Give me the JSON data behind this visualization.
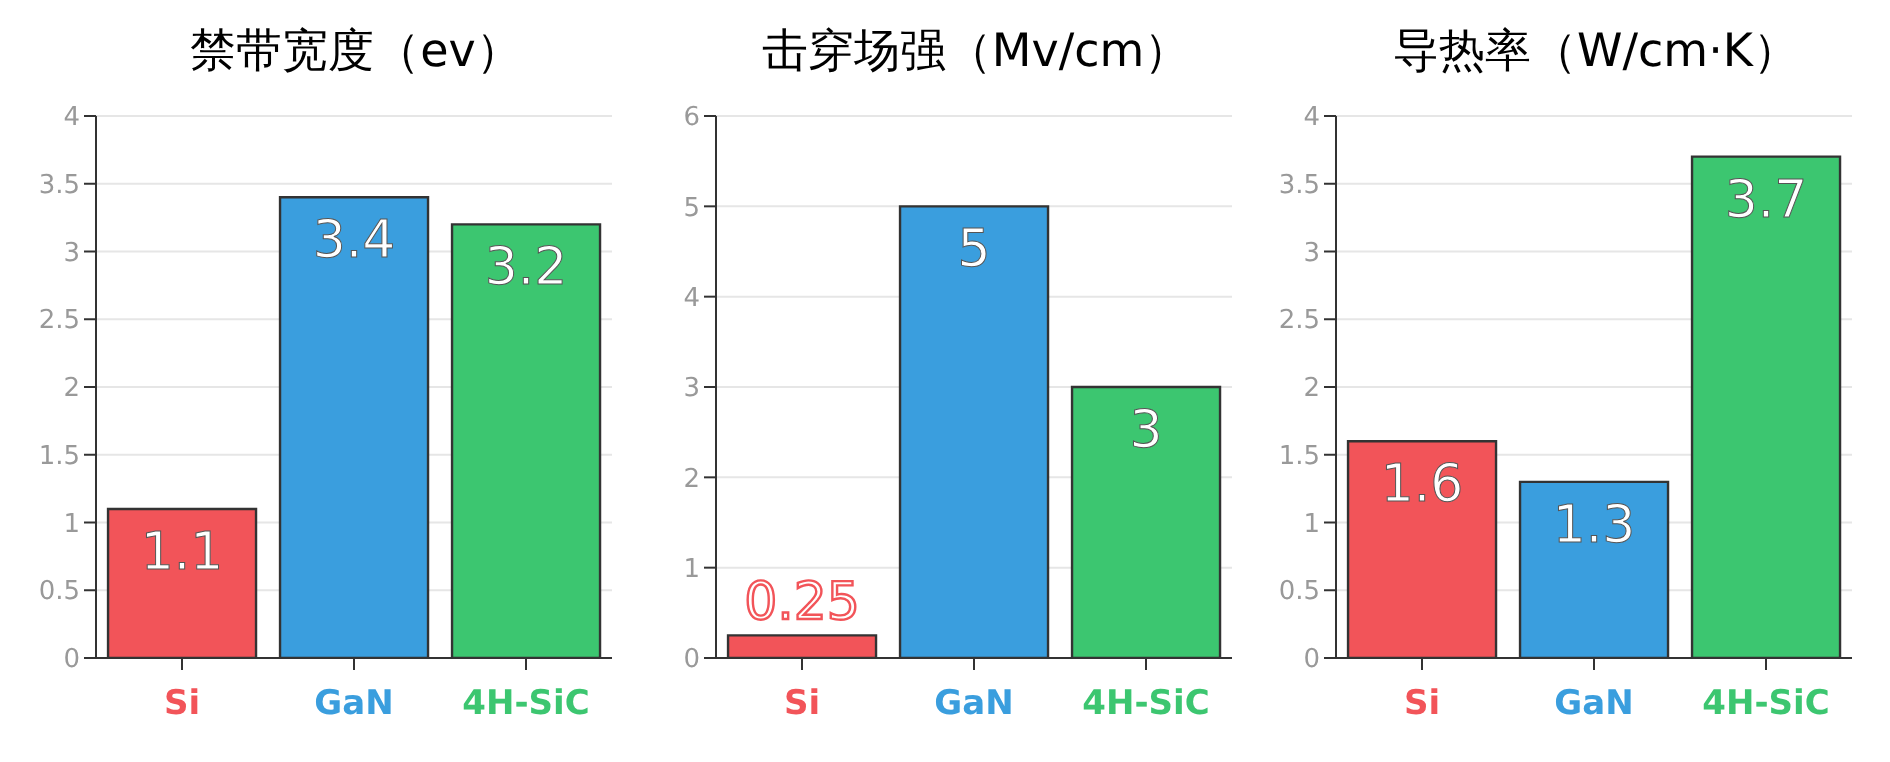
{
  "chart_data": [
    {
      "type": "bar",
      "title": "禁带宽度（ev）",
      "categories": [
        "Si",
        "GaN",
        "4H-SiC"
      ],
      "values": [
        1.1,
        3.4,
        3.2
      ],
      "colors": [
        "#f25459",
        "#3a9ede",
        "#3cc670"
      ],
      "ylim": [
        0,
        4
      ],
      "yticks": [
        0,
        0.5,
        1,
        1.5,
        2,
        2.5,
        3,
        3.5,
        4
      ],
      "grid": "y",
      "data_labels": true
    },
    {
      "type": "bar",
      "title": "击穿场强（Mv/cm）",
      "categories": [
        "Si",
        "GaN",
        "4H-SiC"
      ],
      "values": [
        0.25,
        5,
        3
      ],
      "colors": [
        "#f25459",
        "#3a9ede",
        "#3cc670"
      ],
      "ylim": [
        0,
        6
      ],
      "yticks": [
        0,
        1,
        2,
        3,
        4,
        5,
        6
      ],
      "grid": "y",
      "data_labels": true
    },
    {
      "type": "bar",
      "title": "导热率（W/cm·K）",
      "categories": [
        "Si",
        "GaN",
        "4H-SiC"
      ],
      "values": [
        1.6,
        1.3,
        3.7
      ],
      "colors": [
        "#f25459",
        "#3a9ede",
        "#3cc670"
      ],
      "ylim": [
        0,
        4
      ],
      "yticks": [
        0,
        0.5,
        1,
        1.5,
        2,
        2.5,
        3,
        3.5,
        4
      ],
      "grid": "y",
      "data_labels": true
    }
  ]
}
